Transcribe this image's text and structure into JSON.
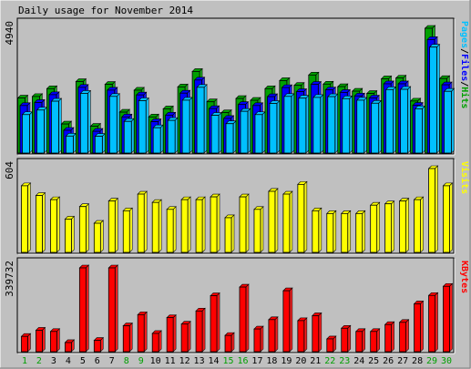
{
  "chart_data": {
    "type": "bar",
    "title": "Daily usage for November 2014",
    "categories": [
      "1",
      "2",
      "3",
      "4",
      "5",
      "6",
      "7",
      "8",
      "9",
      "10",
      "11",
      "12",
      "13",
      "14",
      "15",
      "16",
      "17",
      "18",
      "19",
      "20",
      "21",
      "22",
      "23",
      "24",
      "25",
      "26",
      "27",
      "28",
      "29",
      "30"
    ],
    "weekend_days": [
      "1",
      "2",
      "8",
      "9",
      "15",
      "16",
      "22",
      "23",
      "29",
      "30"
    ],
    "panels": [
      {
        "id": "hits",
        "ymax": 4940,
        "ymax_label": "4940",
        "legend": [
          "Pages",
          "Files",
          "Hits"
        ],
        "series": [
          {
            "name": "Hits",
            "color": "#00a000",
            "values": [
              2180,
              2240,
              2550,
              1150,
              2830,
              1060,
              2720,
              1620,
              2490,
              1430,
              1750,
              2620,
              3230,
              2030,
              1600,
              2160,
              2090,
              2550,
              2870,
              2680,
              3090,
              2730,
              2630,
              2450,
              2360,
              2940,
              2970,
              2060,
              4940,
              2950
            ]
          },
          {
            "name": "Files",
            "color": "#0000ff",
            "values": [
              1990,
              2110,
              2420,
              1010,
              2710,
              970,
              2600,
              1540,
              2410,
              1350,
              1610,
              2480,
              3000,
              1870,
              1480,
              2030,
              1990,
              2340,
              2700,
              2540,
              2830,
              2610,
              2510,
              2370,
              2290,
              2850,
              2850,
              2000,
              4600,
              2810
            ]
          },
          {
            "name": "Pages",
            "color": "#00c0ff",
            "values": [
              1740,
              1920,
              2270,
              890,
              2580,
              880,
              2460,
              1470,
              2290,
              1220,
              1510,
              2310,
              2820,
              1710,
              1380,
              1870,
              1740,
              2180,
              2460,
              2390,
              2420,
              2450,
              2370,
              2310,
              2190,
              2730,
              2740,
              1970,
              4410,
              2660
            ]
          }
        ]
      },
      {
        "id": "visits",
        "ymax": 604,
        "ymax_label": "604",
        "legend": [
          "Visits"
        ],
        "series": [
          {
            "name": "Visits",
            "color": "#ffff00",
            "values": [
              480,
              410,
              380,
              240,
              330,
              210,
              370,
              300,
              420,
              360,
              310,
              380,
              380,
              400,
              250,
              400,
              310,
              440,
              420,
              490,
              300,
              280,
              280,
              280,
              340,
              350,
              370,
              380,
              604,
              480
            ]
          }
        ]
      },
      {
        "id": "kbytes",
        "ymax": 339732,
        "ymax_label": "339732",
        "legend": [
          "KBytes"
        ],
        "series": [
          {
            "name": "KBytes",
            "color": "#ff0000",
            "values": [
              62000,
              87000,
              82000,
              37000,
              339732,
              46000,
              339732,
              105000,
              150000,
              74000,
              138000,
              112000,
              165000,
              227000,
              66000,
              262000,
              92000,
              130000,
              247000,
              126000,
              146000,
              52000,
              95000,
              82000,
              82000,
              110000,
              119000,
              194000,
              228000,
              265000
            ]
          }
        ]
      }
    ]
  }
}
